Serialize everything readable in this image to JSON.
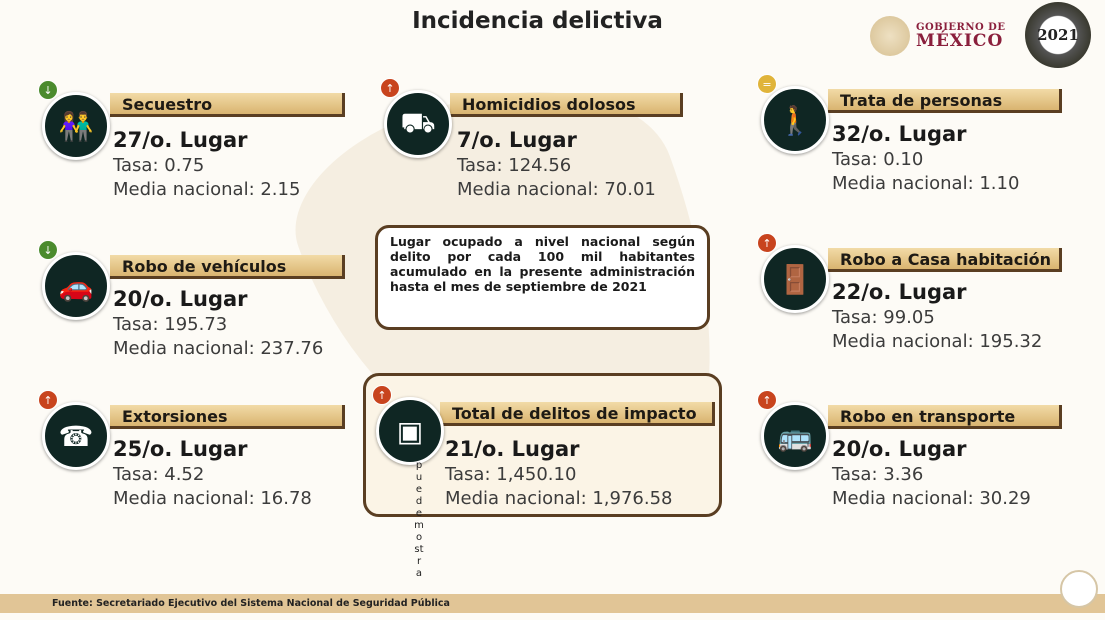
{
  "header": {
    "title": "Incidencia delictiva",
    "logo_line1": "GOBIERNO DE",
    "logo_line2": "MÉXICO",
    "badge_year": "2021"
  },
  "cards": [
    {
      "name": "Secuestro",
      "lugar": "27/o. Lugar",
      "tasa": "Tasa: 0.75",
      "media": "Media nacional: 2.15",
      "trend": "down",
      "icon": "kidnapping-icon"
    },
    {
      "name": "Homicidios dolosos",
      "lugar": "7/o. Lugar",
      "tasa": "Tasa: 124.56",
      "media": "Media nacional:  70.01",
      "trend": "up",
      "icon": "homicide-icon"
    },
    {
      "name": "Trata de personas",
      "lugar": "32/o. Lugar",
      "tasa": "Tasa: 0.10",
      "media": "Media nacional: 1.10",
      "trend": "equal",
      "icon": "human-trafficking-icon"
    },
    {
      "name": "Robo de vehículos",
      "lugar": "20/o. Lugar",
      "tasa": "Tasa: 195.73",
      "media": "Media nacional: 237.76",
      "trend": "down",
      "icon": "car-theft-icon"
    },
    {
      "name": "Robo a Casa habitación",
      "lugar": "22/o. Lugar",
      "tasa": "Tasa: 99.05",
      "media": "Media nacional: 195.32",
      "trend": "up",
      "icon": "house-robbery-icon"
    },
    {
      "name": "Extorsiones",
      "lugar": "25/o. Lugar",
      "tasa": "Tasa: 4.52",
      "media": "Media nacional: 16.78",
      "trend": "up",
      "icon": "extortion-icon"
    },
    {
      "name": "Total de delitos de impacto",
      "lugar": "21/o. Lugar",
      "tasa": "Tasa: 1,450.10",
      "media": "Media nacional: 1,976.58",
      "trend": "up",
      "icon": "broken-image-icon"
    },
    {
      "name": "Robo en transporte",
      "lugar": "20/o. Lugar",
      "tasa": "Tasa: 3.36",
      "media": "Media nacional: 30.29",
      "trend": "up",
      "icon": "bus-icon"
    }
  ],
  "info_note": "Lugar ocupado a nivel nacional según delito por cada 100 mil habitantes acumulado en la presente administración hasta el mes de septiembre de 2021",
  "overlay_vertical_text": "puedemostra",
  "footer": {
    "source": "Fuente: Secretariado Ejecutivo del Sistema Nacional de Seguridad Pública"
  },
  "colors": {
    "bar": "#d9b470",
    "circle": "#0f2623",
    "border": "#5a3e22",
    "down": "#4b8b2e",
    "up": "#c8441e",
    "equal": "#e0b43a",
    "footer": "#e1c596"
  }
}
